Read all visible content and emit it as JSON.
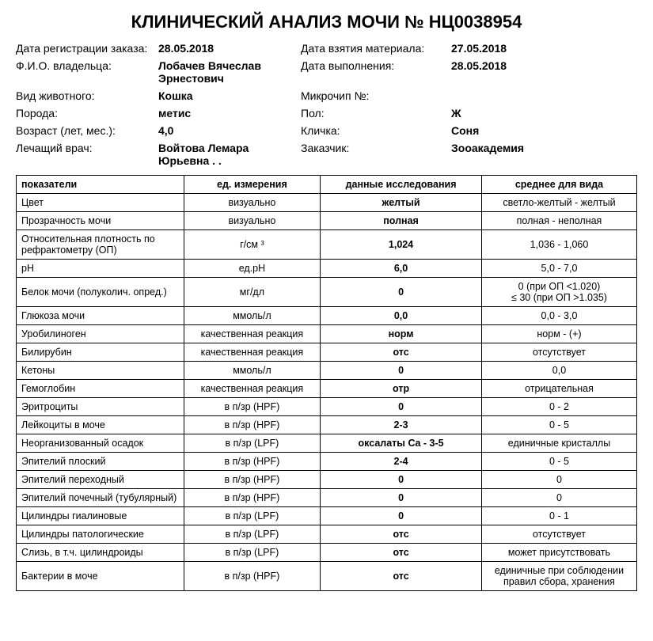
{
  "title": "КЛИНИЧЕСКИЙ АНАЛИЗ МОЧИ  № НЦ0038954",
  "header": {
    "reg_date_label": "Дата регистрации заказа:",
    "reg_date": "28.05.2018",
    "sample_date_label": "Дата взятия материала:",
    "sample_date": "27.05.2018",
    "owner_label": "Ф.И.О. владельца:",
    "owner": "Лобачев Вячеслав Эрнестович",
    "done_date_label": "Дата выполнения:",
    "done_date": "28.05.2018",
    "species_label": "Вид животного:",
    "species": "Кошка",
    "microchip_label": "Микрочип №:",
    "microchip": "",
    "breed_label": "Порода:",
    "breed": "метис",
    "sex_label": "Пол:",
    "sex": "Ж",
    "age_label": "Возраст (лет, мес.):",
    "age": "4,0",
    "name_label": "Кличка:",
    "name": "Соня",
    "doctor_label": "Лечащий врач:",
    "doctor": "Войтова Лемара Юрьевна . .",
    "customer_label": "Заказчик:",
    "customer": "Зооакадемия"
  },
  "table": {
    "headers": {
      "param": "показатели",
      "unit": "ед. измерения",
      "data": "данные исследования",
      "ref": "среднее для вида"
    },
    "rows": [
      {
        "param": "Цвет",
        "unit": "визуально",
        "data": "желтый",
        "ref": "светло-желтый - желтый"
      },
      {
        "param": "Прозрачность мочи",
        "unit": "визуально",
        "data": "полная",
        "ref": "полная - неполная"
      },
      {
        "param": "Относительная плотность по рефрактометру (ОП)",
        "unit": "г/см ³",
        "data": "1,024",
        "ref": "1,036 - 1,060"
      },
      {
        "param": "pH",
        "unit": "ед.pH",
        "data": "6,0",
        "ref": "5,0 - 7,0"
      },
      {
        "param": "Белок мочи (полуколич. опред.)",
        "unit": "мг/дл",
        "data": "0",
        "ref": "0 (при ОП <1.020)\n≤ 30 (при ОП >1.035)"
      },
      {
        "param": "Глюкоза мочи",
        "unit": "ммоль/л",
        "data": "0,0",
        "ref": "0,0 - 3,0"
      },
      {
        "param": "Уробилиноген",
        "unit": "качественная реакция",
        "data": "норм",
        "ref": "норм - (+)"
      },
      {
        "param": "Билирубин",
        "unit": "качественная реакция",
        "data": "отс",
        "ref": "отсутствует"
      },
      {
        "param": "Кетоны",
        "unit": "ммоль/л",
        "data": "0",
        "ref": "0,0"
      },
      {
        "param": "Гемоглобин",
        "unit": "качественная реакция",
        "data": "отр",
        "ref": "отрицательная"
      },
      {
        "param": "Эритроциты",
        "unit": "в п/зр (HPF)",
        "data": "0",
        "ref": "0 - 2"
      },
      {
        "param": "Лейкоциты в моче",
        "unit": "в п/зр (HPF)",
        "data": "2-3",
        "ref": "0 - 5"
      },
      {
        "param": "Неорганизованный осадок",
        "unit": "в п/зр (LPF)",
        "data": "оксалаты Ca - 3-5",
        "ref": "единичные кристаллы"
      },
      {
        "param": "Эпителий плоский",
        "unit": "в п/зр (HPF)",
        "data": "2-4",
        "ref": "0 - 5"
      },
      {
        "param": "Эпителий переходный",
        "unit": "в п/зр (HPF)",
        "data": "0",
        "ref": "0"
      },
      {
        "param": "Эпителий почечный (тубулярный)",
        "unit": "в п/зр (HPF)",
        "data": "0",
        "ref": "0"
      },
      {
        "param": "Цилиндры гиалиновые",
        "unit": "в п/зр (LPF)",
        "data": "0",
        "ref": "0 - 1"
      },
      {
        "param": "Цилиндры патологические",
        "unit": "в п/зр (LPF)",
        "data": "отс",
        "ref": "отсутствует"
      },
      {
        "param": "Слизь, в т.ч. цилиндроиды",
        "unit": "в п/зр (LPF)",
        "data": "отс",
        "ref": "может присутствовать"
      },
      {
        "param": "Бактерии в моче",
        "unit": "в п/зр (HPF)",
        "data": "отс",
        "ref": "единичные при соблюдении правил сбора, хранения"
      }
    ]
  }
}
